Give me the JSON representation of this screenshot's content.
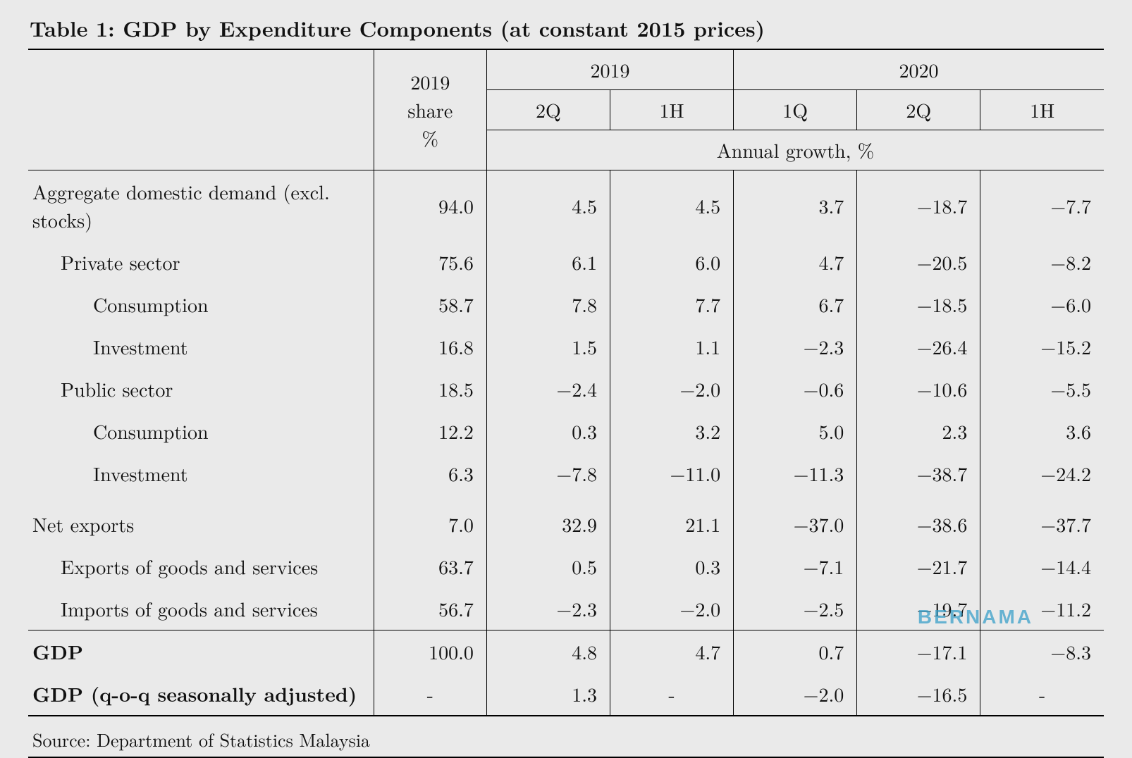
{
  "table": {
    "type": "table",
    "title": "Table 1: GDP by Expenditure Components (at constant 2015 prices)",
    "header": {
      "share_label_lines": [
        "2019",
        "share",
        "%"
      ],
      "year_2019": "2019",
      "year_2020": "2020",
      "sub_2019": [
        "2Q",
        "1H"
      ],
      "sub_2020": [
        "1Q",
        "2Q",
        "1H"
      ],
      "annual_growth": "Annual growth, %"
    },
    "columns": [
      "label",
      "share_2019",
      "2019_2Q",
      "2019_1H",
      "2020_1Q",
      "2020_2Q",
      "2020_1H"
    ],
    "rows": [
      {
        "label": "Aggregate domestic demand (excl. stocks)",
        "indent": 0,
        "values": [
          "94.0",
          "4.5",
          "4.5",
          "3.7",
          "−18.7",
          "−7.7"
        ]
      },
      {
        "label": "Private sector",
        "indent": 1,
        "values": [
          "75.6",
          "6.1",
          "6.0",
          "4.7",
          "−20.5",
          "−8.2"
        ]
      },
      {
        "label": "Consumption",
        "indent": 2,
        "values": [
          "58.7",
          "7.8",
          "7.7",
          "6.7",
          "−18.5",
          "−6.0"
        ]
      },
      {
        "label": "Investment",
        "indent": 2,
        "values": [
          "16.8",
          "1.5",
          "1.1",
          "−2.3",
          "−26.4",
          "−15.2"
        ]
      },
      {
        "label": "Public sector",
        "indent": 1,
        "values": [
          "18.5",
          "−2.4",
          "−2.0",
          "−0.6",
          "−10.6",
          "−5.5"
        ]
      },
      {
        "label": "Consumption",
        "indent": 2,
        "values": [
          "12.2",
          "0.3",
          "3.2",
          "5.0",
          "2.3",
          "3.6"
        ]
      },
      {
        "label": "Investment",
        "indent": 2,
        "values": [
          "6.3",
          "−7.8",
          "−11.0",
          "−11.3",
          "−38.7",
          "−24.2"
        ]
      },
      {
        "label": "Net exports",
        "indent": 0,
        "gap": true,
        "values": [
          "7.0",
          "32.9",
          "21.1",
          "−37.0",
          "−38.6",
          "−37.7"
        ]
      },
      {
        "label": "Exports of goods and services",
        "indent": 1,
        "values": [
          "63.7",
          "0.5",
          "0.3",
          "−7.1",
          "−21.7",
          "−14.4"
        ]
      },
      {
        "label": "Imports of goods and services",
        "indent": 1,
        "values": [
          "56.7",
          "−2.3",
          "−2.0",
          "−2.5",
          "−19.7",
          "−11.2"
        ]
      },
      {
        "label": "GDP",
        "indent": 0,
        "bold": true,
        "rule_above": true,
        "values": [
          "100.0",
          "4.8",
          "4.7",
          "0.7",
          "−17.1",
          "−8.3"
        ]
      },
      {
        "label": "GDP (q-o-q seasonally adjusted)",
        "indent": 0,
        "bold": true,
        "rule_below": true,
        "values": [
          "-",
          "1.3",
          "-",
          "−2.0",
          "−16.5",
          "-"
        ],
        "center_dash": true
      }
    ],
    "footer": "Source: Department of Statistics Malaysia",
    "colors": {
      "background": "#eaeaea",
      "text": "#111111",
      "rule": "#000000",
      "watermark": "#3aa0c9"
    },
    "font": {
      "family": "Computer Modern / Latin Modern (serif)",
      "title_size_pt": 22,
      "body_size_pt": 20
    }
  },
  "watermark": "BERNAMA"
}
